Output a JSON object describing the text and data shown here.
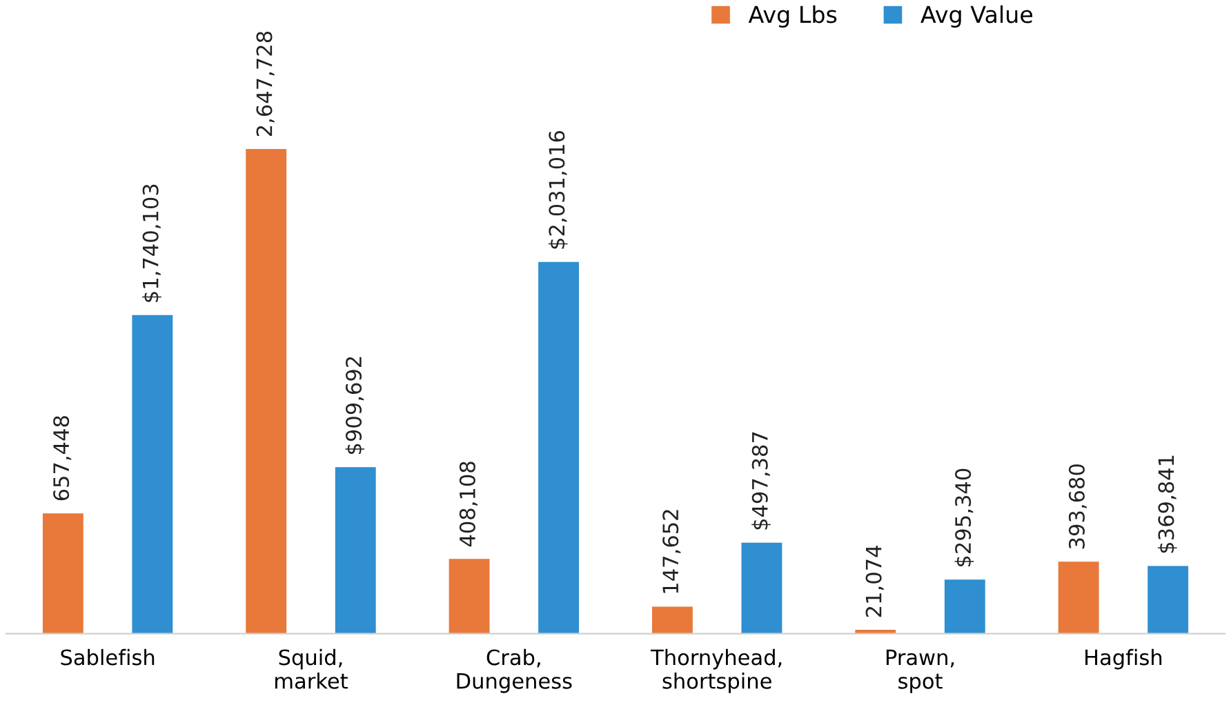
{
  "chart_data": {
    "type": "bar",
    "categories": [
      "Sablefish",
      "Squid,\nmarket",
      "Crab,\nDungeness",
      "Thornyhead,\nshortspine",
      "Prawn,\nspot",
      "Hagfish"
    ],
    "series": [
      {
        "name": "Avg Lbs",
        "color": "#e8793a",
        "values": [
          657448,
          2647728,
          408108,
          147652,
          21074,
          393680
        ],
        "value_labels": [
          "657,448",
          "2,647,728",
          "408,108",
          "147,652",
          "21,074",
          "393,680"
        ]
      },
      {
        "name": "Avg Value",
        "color": "#2f8fd0",
        "values": [
          1740103,
          909692,
          2031016,
          497387,
          295340,
          369841
        ],
        "value_labels": [
          "$1,740,103",
          "$909,692",
          "$2,031,016",
          "$497,387",
          "$295,340",
          "$369,841"
        ]
      }
    ],
    "legend": "top right"
  }
}
